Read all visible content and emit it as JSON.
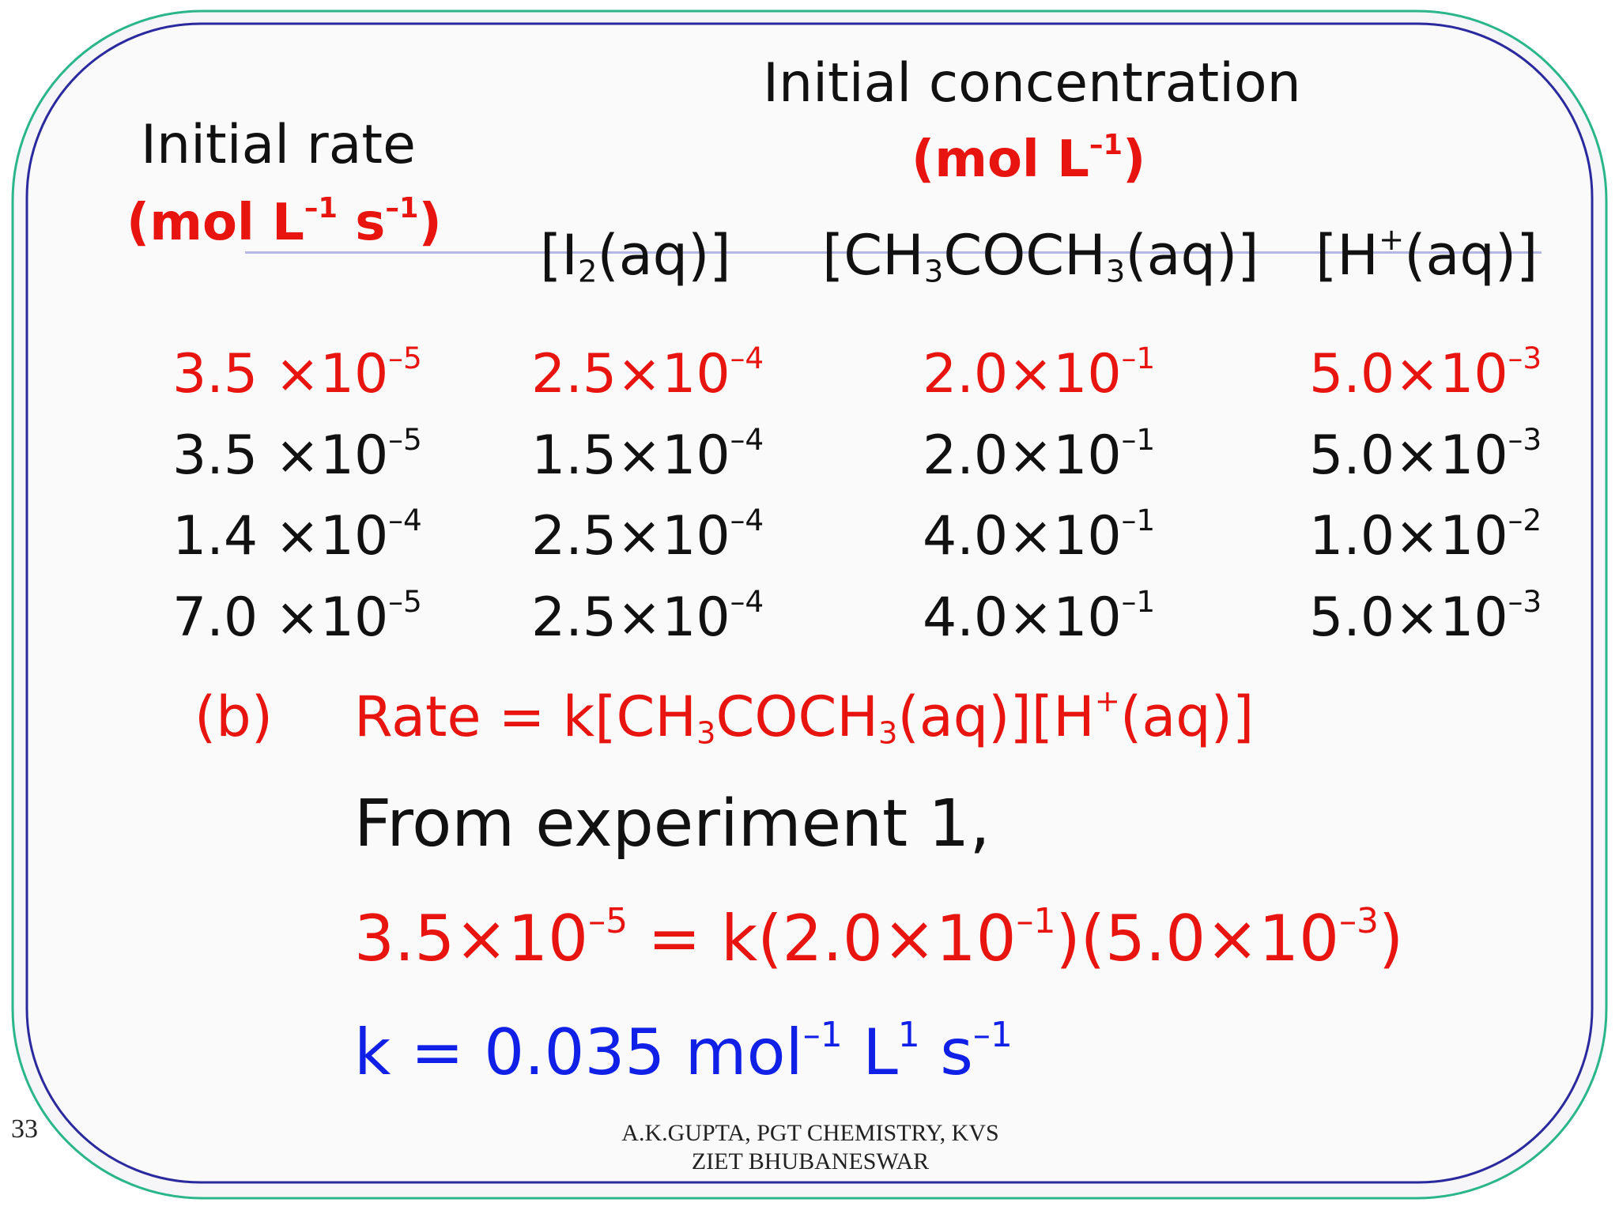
{
  "colors": {
    "red": "#e8140f",
    "blue": "#1020e6",
    "frame_outer": "#2bb58a",
    "frame_inner": "#2a2a9e",
    "rule": "#b4b6e6"
  },
  "header": {
    "initial_concentration": "Initial concentration",
    "conc_units": {
      "text": "(mol L",
      "exp": "–1",
      "close": ")"
    },
    "initial_rate": "Initial rate",
    "rate_units": {
      "a": "(mol L",
      "a_exp": "–1",
      "b": " s",
      "b_exp": "–1",
      "close": ")"
    }
  },
  "columns": {
    "i2": {
      "a": "[I",
      "sub": "2",
      "b": "(aq)]"
    },
    "acetone": {
      "a": "[CH",
      "sub1": "3",
      "b": "COCH",
      "sub2": "3",
      "c": "(aq)]"
    },
    "h": {
      "a": "[H",
      "sup": "+",
      "b": "(aq)]"
    }
  },
  "rows": [
    {
      "rate": {
        "m": "3.5 ×10",
        "e": "–5"
      },
      "i2": {
        "m": "2.5×10",
        "e": "–4"
      },
      "acetone": {
        "m": "2.0×10",
        "e": "–1"
      },
      "h": {
        "m": "5.0×10",
        "e": "–3"
      }
    },
    {
      "rate": {
        "m": "3.5 ×10",
        "e": "–5"
      },
      "i2": {
        "m": "1.5×10",
        "e": "–4"
      },
      "acetone": {
        "m": "2.0×10",
        "e": "–1"
      },
      "h": {
        "m": "5.0×10",
        "e": "–3"
      }
    },
    {
      "rate": {
        "m": "1.4 ×10",
        "e": "–4"
      },
      "i2": {
        "m": "2.5×10",
        "e": "–4"
      },
      "acetone": {
        "m": "4.0×10",
        "e": "–1"
      },
      "h": {
        "m": "1.0×10",
        "e": "–2"
      }
    },
    {
      "rate": {
        "m": "7.0 ×10",
        "e": "–5"
      },
      "i2": {
        "m": "2.5×10",
        "e": "–4"
      },
      "acetone": {
        "m": "4.0×10",
        "e": "–1"
      },
      "h": {
        "m": "5.0×10",
        "e": "–3"
      }
    }
  ],
  "part_b": {
    "label": "(b)",
    "rate_law": {
      "a": "Rate = k[CH",
      "sub1": "3",
      "b": "COCH",
      "sub2": "3",
      "c": "(aq)][H",
      "sup": "+",
      "d": "(aq)]"
    }
  },
  "from_experiment": "From experiment 1,",
  "equation": {
    "a": "3.5×10",
    "a_exp": "–5",
    "b": " = k(2.0×10",
    "b_exp": "–1",
    "c": ")(5.0×10",
    "c_exp": "–3",
    "d": ")"
  },
  "result": {
    "a": "k = 0.035 mol",
    "a_exp": "–1",
    "b": " L",
    "b_exp": "1",
    "c": " s",
    "c_exp": "–1"
  },
  "slide_number": "33",
  "footer": {
    "line1": "A.K.GUPTA, PGT CHEMISTRY, KVS",
    "line2": "ZIET BHUBANESWAR"
  }
}
